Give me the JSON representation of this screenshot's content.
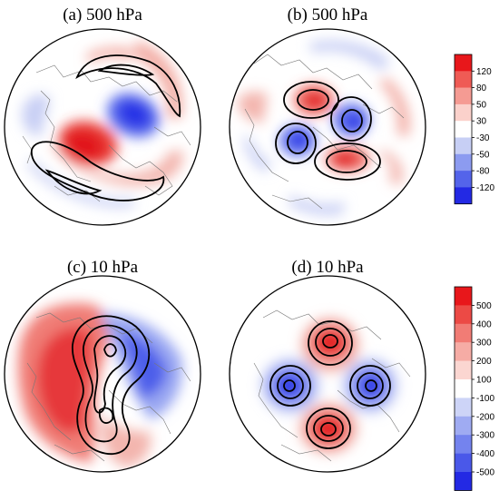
{
  "panels": [
    {
      "id": "a",
      "title": "(a) 500 hPa"
    },
    {
      "id": "b",
      "title": "(b) 500 hPa"
    },
    {
      "id": "c",
      "title": "(c) 10 hPa"
    },
    {
      "id": "d",
      "title": "(d) 10 hPa"
    }
  ],
  "colorbars": [
    {
      "id": "top",
      "labels": [
        "120",
        "80",
        "50",
        "30",
        "-30",
        "-50",
        "-80",
        "-120"
      ],
      "colors": [
        "#e8171b",
        "#ef5b55",
        "#f59b93",
        "#fbd1cb",
        "#ffffff",
        "#c7cff5",
        "#8c9bf0",
        "#5464ea",
        "#2329e4"
      ]
    },
    {
      "id": "bottom",
      "labels": [
        "500",
        "400",
        "300",
        "200",
        "100",
        "-100",
        "-200",
        "-300",
        "-400",
        "-500"
      ],
      "colors": [
        "#e8171b",
        "#ec4a45",
        "#f17c75",
        "#f6aca5",
        "#fbd6d1",
        "#ffffff",
        "#cdd4f7",
        "#9fabf2",
        "#7483ee",
        "#4a58e9",
        "#2329e4"
      ]
    }
  ]
}
